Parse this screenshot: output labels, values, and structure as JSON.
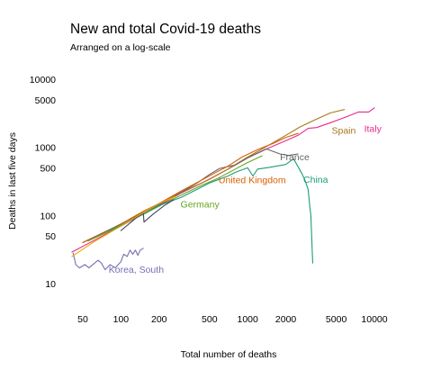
{
  "chart_data": {
    "type": "line",
    "title": "New and total Covid-19 deaths",
    "subtitle": "Arranged on a log-scale",
    "xlabel": "Total number of deaths",
    "ylabel": "Deaths in last five days",
    "x_scale": "log",
    "y_scale": "log",
    "xlim": [
      40,
      10500
    ],
    "ylim": [
      7,
      14000
    ],
    "grid": false,
    "legend": "none",
    "x_ticks": [
      {
        "value": 50,
        "label": "50"
      },
      {
        "value": 100,
        "label": "100"
      },
      {
        "value": 200,
        "label": "200"
      },
      {
        "value": 500,
        "label": "500"
      },
      {
        "value": 1000,
        "label": "1000"
      },
      {
        "value": 2000,
        "label": "2000"
      },
      {
        "value": 5000,
        "label": "5000"
      },
      {
        "value": 10000,
        "label": "10000"
      }
    ],
    "y_ticks": [
      {
        "value": 10,
        "label": "10"
      },
      {
        "value": 50,
        "label": "50"
      },
      {
        "value": 100,
        "label": "100"
      },
      {
        "value": 500,
        "label": "500"
      },
      {
        "value": 1000,
        "label": "1000"
      },
      {
        "value": 5000,
        "label": "5000"
      },
      {
        "value": 10000,
        "label": "10000"
      }
    ],
    "series": [
      {
        "name": "Italy",
        "color": "#e7298a",
        "label_at": [
          8300,
          1900
        ],
        "points": [
          [
            41,
            29
          ],
          [
            60,
            42
          ],
          [
            100,
            70
          ],
          [
            150,
            105
          ],
          [
            200,
            140
          ],
          [
            300,
            215
          ],
          [
            500,
            340
          ],
          [
            700,
            480
          ],
          [
            1000,
            700
          ],
          [
            1500,
            1000
          ],
          [
            2000,
            1250
          ],
          [
            2500,
            1500
          ],
          [
            3000,
            1900
          ],
          [
            3500,
            1950
          ],
          [
            4500,
            2300
          ],
          [
            6000,
            2800
          ],
          [
            7500,
            3300
          ],
          [
            9000,
            3300
          ],
          [
            10000,
            3800
          ]
        ]
      },
      {
        "name": "Spain",
        "color": "#a6761d",
        "label_at": [
          4600,
          1800
        ],
        "points": [
          [
            50,
            40
          ],
          [
            80,
            60
          ],
          [
            120,
            90
          ],
          [
            200,
            145
          ],
          [
            300,
            220
          ],
          [
            450,
            310
          ],
          [
            700,
            480
          ],
          [
            1000,
            720
          ],
          [
            1500,
            1100
          ],
          [
            2000,
            1500
          ],
          [
            2600,
            2000
          ],
          [
            3500,
            2600
          ],
          [
            4500,
            3200
          ],
          [
            5800,
            3600
          ]
        ]
      },
      {
        "name": "France",
        "color": "#666666",
        "label_at": [
          1800,
          730
        ],
        "points": [
          [
            50,
            40
          ],
          [
            90,
            68
          ],
          [
            150,
            110
          ],
          [
            250,
            180
          ],
          [
            400,
            300
          ],
          [
            500,
            400
          ],
          [
            600,
            490
          ],
          [
            800,
            550
          ],
          [
            1000,
            700
          ],
          [
            1400,
            950
          ],
          [
            1800,
            800
          ],
          [
            2100,
            760
          ],
          [
            2500,
            800
          ]
        ]
      },
      {
        "name": "United Kingdom",
        "color": "#d95f02",
        "label_at": [
          590,
          335
        ],
        "points": [
          [
            50,
            40
          ],
          [
            70,
            53
          ],
          [
            100,
            75
          ],
          [
            150,
            115
          ],
          [
            200,
            150
          ],
          [
            300,
            230
          ],
          [
            420,
            320
          ],
          [
            550,
            420
          ],
          [
            700,
            530
          ],
          [
            900,
            720
          ],
          [
            1200,
            930
          ],
          [
            1600,
            1150
          ],
          [
            2000,
            1400
          ],
          [
            2500,
            1600
          ]
        ]
      },
      {
        "name": "Germany",
        "color": "#66a61e",
        "label_at": [
          295,
          148
        ],
        "points": [
          [
            55,
            42
          ],
          [
            80,
            58
          ],
          [
            120,
            85
          ],
          [
            160,
            110
          ],
          [
            220,
            150
          ],
          [
            300,
            200
          ],
          [
            420,
            270
          ],
          [
            600,
            360
          ],
          [
            800,
            480
          ],
          [
            1000,
            600
          ],
          [
            1300,
            750
          ]
        ]
      },
      {
        "name": "China",
        "color": "#1b9e77",
        "label_at": [
          2750,
          340
        ],
        "points": [
          [
            80,
            60
          ],
          [
            100,
            72
          ],
          [
            150,
            105
          ],
          [
            200,
            140
          ],
          [
            300,
            185
          ],
          [
            500,
            300
          ],
          [
            700,
            380
          ],
          [
            800,
            430
          ],
          [
            1000,
            500
          ],
          [
            1100,
            380
          ],
          [
            1200,
            480
          ],
          [
            1500,
            510
          ],
          [
            2000,
            560
          ],
          [
            2300,
            680
          ],
          [
            2500,
            520
          ],
          [
            2700,
            400
          ],
          [
            2850,
            320
          ],
          [
            3000,
            240
          ],
          [
            3100,
            130
          ],
          [
            3150,
            100
          ],
          [
            3200,
            50
          ],
          [
            3230,
            30
          ],
          [
            3260,
            20
          ]
        ]
      },
      {
        "name": "Korea, South",
        "color": "#7570b3",
        "label_at": [
          80,
          16.3
        ],
        "points": [
          [
            42,
            28
          ],
          [
            44,
            19
          ],
          [
            47,
            17
          ],
          [
            52,
            19
          ],
          [
            56,
            17
          ],
          [
            60,
            19
          ],
          [
            66,
            22
          ],
          [
            70,
            20
          ],
          [
            75,
            16
          ],
          [
            82,
            19
          ],
          [
            90,
            17
          ],
          [
            100,
            21
          ],
          [
            105,
            27
          ],
          [
            112,
            25
          ],
          [
            118,
            31
          ],
          [
            124,
            27
          ],
          [
            130,
            31
          ],
          [
            136,
            26
          ],
          [
            142,
            31
          ],
          [
            150,
            33
          ]
        ]
      },
      {
        "name": "",
        "color": "#444466",
        "label_at": null,
        "points": [
          [
            100,
            60
          ],
          [
            130,
            90
          ],
          [
            150,
            110
          ],
          [
            152,
            80
          ],
          [
            180,
            105
          ],
          [
            220,
            140
          ],
          [
            260,
            170
          ]
        ]
      },
      {
        "name": "",
        "color": "#e6ab02",
        "label_at": null,
        "points": [
          [
            41,
            25
          ],
          [
            45,
            28
          ],
          [
            60,
            40
          ],
          [
            100,
            70
          ],
          [
            150,
            110
          ],
          [
            200,
            150
          ],
          [
            270,
            190
          ]
        ]
      }
    ]
  }
}
